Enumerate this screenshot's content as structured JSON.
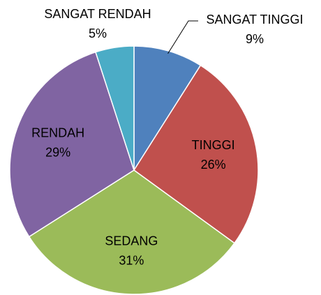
{
  "chart_data": {
    "type": "pie",
    "categories": [
      "SANGAT TINGGI",
      "TINGGI",
      "SEDANG",
      "RENDAH",
      "SANGAT RENDAH"
    ],
    "values": [
      9,
      26,
      31,
      29,
      5
    ],
    "value_labels": [
      "9%",
      "26%",
      "31%",
      "29%",
      "5%"
    ],
    "colors": [
      "#4f81bd",
      "#c0504d",
      "#9bbb59",
      "#8064a2",
      "#4bacc6"
    ]
  }
}
